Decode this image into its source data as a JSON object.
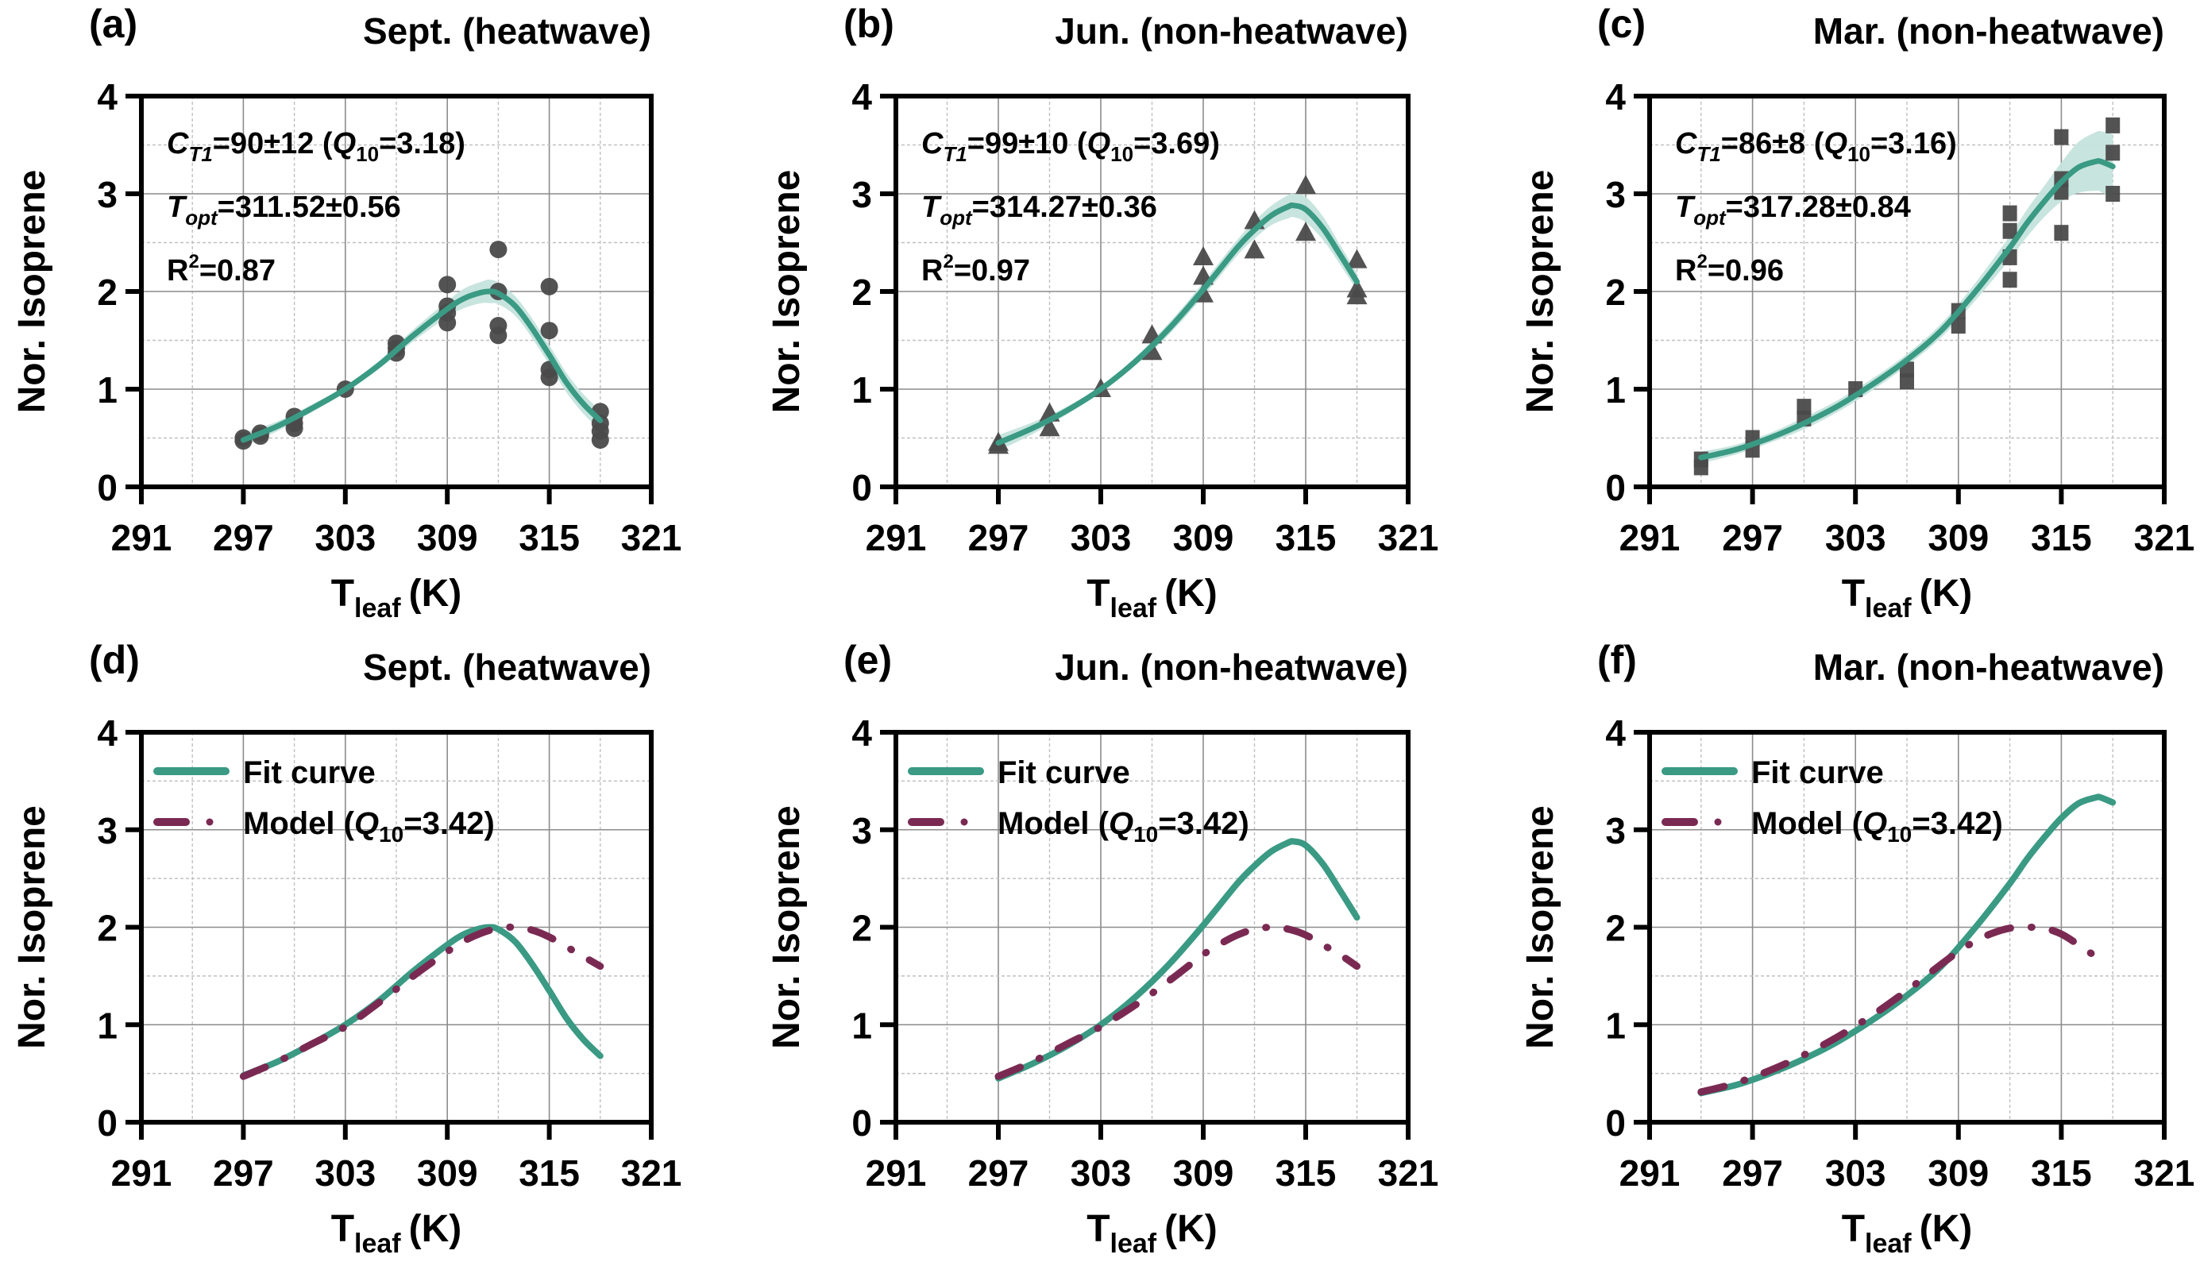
{
  "figure": {
    "colors": {
      "fit_line": "#3a9a84",
      "fit_band": "#c5e3dc",
      "model_line": "#7a2a52",
      "marker": "#4a4a4a",
      "grid_major": "#8c8c8c",
      "grid_minor": "#c0c0c0",
      "axis": "#000000"
    }
  },
  "chart_data": [
    {
      "panel": "(a)",
      "type": "scatter",
      "title": "Sept. (heatwave)",
      "xlabel": "T_leaf (K)",
      "xlabel_main": "T",
      "xlabel_sub": "leaf",
      "xlabel_unit": "(K)",
      "ylabel": "Nor. Isoprene",
      "xlim": [
        291,
        321
      ],
      "ylim": [
        0,
        4
      ],
      "xticks": [
        "291",
        "297",
        "303",
        "309",
        "315",
        "321"
      ],
      "yticks": [
        "0",
        "1",
        "2",
        "3",
        "4"
      ],
      "grid": true,
      "marker": "circle",
      "annotations": {
        "ct1_value": "=90±12 (",
        "q10_value": "=3.18)",
        "topt_value": "=311.52±0.56",
        "r2_value": "=0.87"
      },
      "points": [
        [
          297,
          0.47
        ],
        [
          297,
          0.5
        ],
        [
          298,
          0.52
        ],
        [
          298,
          0.55
        ],
        [
          300,
          0.6
        ],
        [
          300,
          0.65
        ],
        [
          300,
          0.72
        ],
        [
          303,
          1.0
        ],
        [
          306,
          1.37
        ],
        [
          306,
          1.42
        ],
        [
          306,
          1.47
        ],
        [
          309,
          2.07
        ],
        [
          309,
          1.85
        ],
        [
          309,
          1.78
        ],
        [
          309,
          1.68
        ],
        [
          312,
          2.43
        ],
        [
          312,
          2.0
        ],
        [
          312,
          1.65
        ],
        [
          312,
          1.55
        ],
        [
          315,
          2.05
        ],
        [
          315,
          1.6
        ],
        [
          315,
          1.2
        ],
        [
          315,
          1.12
        ],
        [
          318,
          0.77
        ],
        [
          318,
          0.65
        ],
        [
          318,
          0.57
        ],
        [
          318,
          0.48
        ]
      ],
      "fit": {
        "name": "Fit curve",
        "x": [
          297,
          299,
          301,
          303,
          305,
          307,
          309,
          310,
          311,
          311.5,
          312,
          313,
          314,
          315,
          316,
          317,
          318
        ],
        "y": [
          0.48,
          0.62,
          0.8,
          1.0,
          1.25,
          1.55,
          1.82,
          1.93,
          1.99,
          2.0,
          1.98,
          1.85,
          1.62,
          1.35,
          1.07,
          0.85,
          0.68
        ],
        "band_half_width": [
          0.07,
          0.05,
          0.04,
          0.03,
          0.04,
          0.06,
          0.08,
          0.1,
          0.11,
          0.12,
          0.11,
          0.1,
          0.1,
          0.1,
          0.1,
          0.1,
          0.1
        ]
      }
    },
    {
      "panel": "(b)",
      "type": "scatter",
      "title": "Jun. (non-heatwave)",
      "xlabel": "T_leaf (K)",
      "xlabel_main": "T",
      "xlabel_sub": "leaf",
      "xlabel_unit": "(K)",
      "ylabel": "Nor. Isoprene",
      "xlim": [
        291,
        321
      ],
      "ylim": [
        0,
        4
      ],
      "xticks": [
        "291",
        "297",
        "303",
        "309",
        "315",
        "321"
      ],
      "yticks": [
        "0",
        "1",
        "2",
        "3",
        "4"
      ],
      "grid": true,
      "marker": "triangle",
      "annotations": {
        "ct1_value": "=99±10 (",
        "q10_value": "=3.69)",
        "topt_value": "=314.27±0.36",
        "r2_value": "=0.97"
      },
      "points": [
        [
          297,
          0.45
        ],
        [
          297,
          0.42
        ],
        [
          300,
          0.75
        ],
        [
          300,
          0.6
        ],
        [
          303,
          1.0
        ],
        [
          306,
          1.55
        ],
        [
          306,
          1.38
        ],
        [
          309,
          2.35
        ],
        [
          309,
          2.15
        ],
        [
          309,
          1.97
        ],
        [
          312,
          2.72
        ],
        [
          312,
          2.42
        ],
        [
          315,
          3.08
        ],
        [
          315,
          2.6
        ],
        [
          318,
          2.32
        ],
        [
          318,
          2.02
        ],
        [
          318,
          1.95
        ]
      ],
      "fit": {
        "name": "Fit curve",
        "x": [
          297,
          299,
          301,
          303,
          305,
          307,
          309,
          311,
          312,
          313,
          314,
          314.3,
          315,
          316,
          317,
          318
        ],
        "y": [
          0.45,
          0.6,
          0.78,
          1.0,
          1.28,
          1.62,
          2.02,
          2.45,
          2.63,
          2.78,
          2.87,
          2.88,
          2.84,
          2.65,
          2.38,
          2.1
        ],
        "band_half_width": [
          0.08,
          0.06,
          0.04,
          0.03,
          0.04,
          0.06,
          0.07,
          0.08,
          0.09,
          0.1,
          0.12,
          0.12,
          0.13,
          0.12,
          0.1,
          0.09
        ]
      }
    },
    {
      "panel": "(c)",
      "type": "scatter",
      "title": "Mar. (non-heatwave)",
      "xlabel": "T_leaf (K)",
      "xlabel_main": "T",
      "xlabel_sub": "leaf",
      "xlabel_unit": "(K)",
      "ylabel": "Nor. Isoprene",
      "xlim": [
        291,
        321
      ],
      "ylim": [
        0,
        4
      ],
      "xticks": [
        "291",
        "297",
        "303",
        "309",
        "315",
        "321"
      ],
      "yticks": [
        "0",
        "1",
        "2",
        "3",
        "4"
      ],
      "grid": true,
      "marker": "square",
      "annotations": {
        "ct1_value": "=86±8 (",
        "q10_value": "=3.16)",
        "topt_value": "=317.28±0.84",
        "r2_value": "=0.96"
      },
      "points": [
        [
          294,
          0.28
        ],
        [
          294,
          0.2
        ],
        [
          297,
          0.5
        ],
        [
          297,
          0.38
        ],
        [
          300,
          0.82
        ],
        [
          300,
          0.7
        ],
        [
          303,
          1.0
        ],
        [
          306,
          1.2
        ],
        [
          306,
          1.08
        ],
        [
          309,
          1.8
        ],
        [
          309,
          1.65
        ],
        [
          312,
          2.8
        ],
        [
          312,
          2.62
        ],
        [
          312,
          2.35
        ],
        [
          312,
          2.12
        ],
        [
          315,
          3.58
        ],
        [
          315,
          3.15
        ],
        [
          315,
          3.02
        ],
        [
          315,
          2.6
        ],
        [
          318,
          3.7
        ],
        [
          318,
          3.42
        ],
        [
          318,
          3.0
        ]
      ],
      "fit": {
        "name": "Fit curve",
        "x": [
          294,
          296,
          298,
          300,
          302,
          304,
          306,
          308,
          310,
          312,
          313,
          314,
          315,
          316,
          317,
          317.3,
          318
        ],
        "y": [
          0.3,
          0.38,
          0.5,
          0.65,
          0.83,
          1.05,
          1.3,
          1.6,
          2.0,
          2.45,
          2.7,
          2.92,
          3.12,
          3.27,
          3.33,
          3.33,
          3.28
        ],
        "band_half_width": [
          0.06,
          0.05,
          0.05,
          0.06,
          0.06,
          0.06,
          0.06,
          0.07,
          0.09,
          0.12,
          0.14,
          0.16,
          0.2,
          0.26,
          0.3,
          0.31,
          0.33
        ]
      }
    },
    {
      "panel": "(d)",
      "type": "line",
      "title": "Sept. (heatwave)",
      "xlabel": "T_leaf (K)",
      "xlabel_main": "T",
      "xlabel_sub": "leaf",
      "xlabel_unit": "(K)",
      "ylabel": "Nor. Isoprene",
      "xlim": [
        291,
        321
      ],
      "ylim": [
        0,
        4
      ],
      "xticks": [
        "291",
        "297",
        "303",
        "309",
        "315",
        "321"
      ],
      "yticks": [
        "0",
        "1",
        "2",
        "3",
        "4"
      ],
      "grid": true,
      "legend": {
        "position": "top-left",
        "fit_label": "Fit curve",
        "model_label_main": "Model (",
        "model_label_q": "Q",
        "model_label_sub": "10",
        "model_label_value": "=3.42)"
      },
      "series": [
        {
          "name": "Fit curve",
          "style": "solid",
          "x": [
            297,
            299,
            301,
            303,
            305,
            307,
            309,
            310,
            311,
            311.5,
            312,
            313,
            314,
            315,
            316,
            317,
            318
          ],
          "y": [
            0.48,
            0.62,
            0.8,
            1.0,
            1.25,
            1.55,
            1.82,
            1.93,
            1.99,
            2.0,
            1.98,
            1.85,
            1.62,
            1.35,
            1.07,
            0.85,
            0.68
          ]
        },
        {
          "name": "Model (Q10=3.42)",
          "style": "dash-dot",
          "x": [
            297,
            299,
            301,
            303,
            305,
            307,
            309,
            310,
            311,
            312,
            313,
            314,
            315,
            316,
            317,
            318
          ],
          "y": [
            0.47,
            0.62,
            0.8,
            0.98,
            1.23,
            1.5,
            1.75,
            1.86,
            1.94,
            1.99,
            2.0,
            1.97,
            1.9,
            1.8,
            1.7,
            1.6
          ]
        }
      ]
    },
    {
      "panel": "(e)",
      "type": "line",
      "title": "Jun. (non-heatwave)",
      "xlabel": "T_leaf (K)",
      "xlabel_main": "T",
      "xlabel_sub": "leaf",
      "xlabel_unit": "(K)",
      "ylabel": "Nor. Isoprene",
      "xlim": [
        291,
        321
      ],
      "ylim": [
        0,
        4
      ],
      "xticks": [
        "291",
        "297",
        "303",
        "309",
        "315",
        "321"
      ],
      "yticks": [
        "0",
        "1",
        "2",
        "3",
        "4"
      ],
      "grid": true,
      "legend": {
        "position": "top-left",
        "fit_label": "Fit curve",
        "model_label_main": "Model (",
        "model_label_q": "Q",
        "model_label_sub": "10",
        "model_label_value": "=3.42)"
      },
      "series": [
        {
          "name": "Fit curve",
          "style": "solid",
          "x": [
            297,
            299,
            301,
            303,
            305,
            307,
            309,
            311,
            312,
            313,
            314,
            314.3,
            315,
            316,
            317,
            318
          ],
          "y": [
            0.45,
            0.6,
            0.78,
            1.0,
            1.28,
            1.62,
            2.02,
            2.45,
            2.63,
            2.78,
            2.87,
            2.88,
            2.84,
            2.65,
            2.38,
            2.1
          ]
        },
        {
          "name": "Model (Q10=3.42)",
          "style": "dash-dot",
          "x": [
            297,
            299,
            301,
            303,
            305,
            307,
            309,
            310,
            311,
            312,
            313,
            314,
            315,
            316,
            317,
            318
          ],
          "y": [
            0.47,
            0.62,
            0.8,
            0.98,
            1.2,
            1.45,
            1.72,
            1.83,
            1.92,
            1.98,
            2.0,
            1.98,
            1.92,
            1.82,
            1.72,
            1.6
          ]
        }
      ]
    },
    {
      "panel": "(f)",
      "type": "line",
      "title": "Mar. (non-heatwave)",
      "xlabel": "T_leaf (K)",
      "xlabel_main": "T",
      "xlabel_sub": "leaf",
      "xlabel_unit": "(K)",
      "ylabel": "Nor. Isoprene",
      "xlim": [
        291,
        321
      ],
      "ylim": [
        0,
        4
      ],
      "xticks": [
        "291",
        "297",
        "303",
        "309",
        "315",
        "321"
      ],
      "yticks": [
        "0",
        "1",
        "2",
        "3",
        "4"
      ],
      "grid": true,
      "legend": {
        "position": "top-left",
        "fit_label": "Fit curve",
        "model_label_main": "Model (",
        "model_label_q": "Q",
        "model_label_sub": "10",
        "model_label_value": "=3.42)"
      },
      "series": [
        {
          "name": "Fit curve",
          "style": "solid",
          "x": [
            294,
            296,
            298,
            300,
            302,
            304,
            306,
            308,
            310,
            312,
            313,
            314,
            315,
            316,
            317,
            317.3,
            318
          ],
          "y": [
            0.3,
            0.38,
            0.5,
            0.65,
            0.83,
            1.05,
            1.3,
            1.6,
            2.0,
            2.45,
            2.7,
            2.92,
            3.12,
            3.27,
            3.33,
            3.33,
            3.28
          ]
        },
        {
          "name": "Model (Q10=3.42)",
          "style": "dash-dot",
          "x": [
            294,
            296,
            298,
            300,
            302,
            304,
            306,
            308,
            309,
            310,
            311,
            312,
            313,
            314,
            315,
            316,
            317
          ],
          "y": [
            0.31,
            0.4,
            0.53,
            0.69,
            0.88,
            1.1,
            1.35,
            1.62,
            1.75,
            1.86,
            1.94,
            1.99,
            2.0,
            1.99,
            1.93,
            1.82,
            1.7
          ]
        }
      ]
    }
  ]
}
